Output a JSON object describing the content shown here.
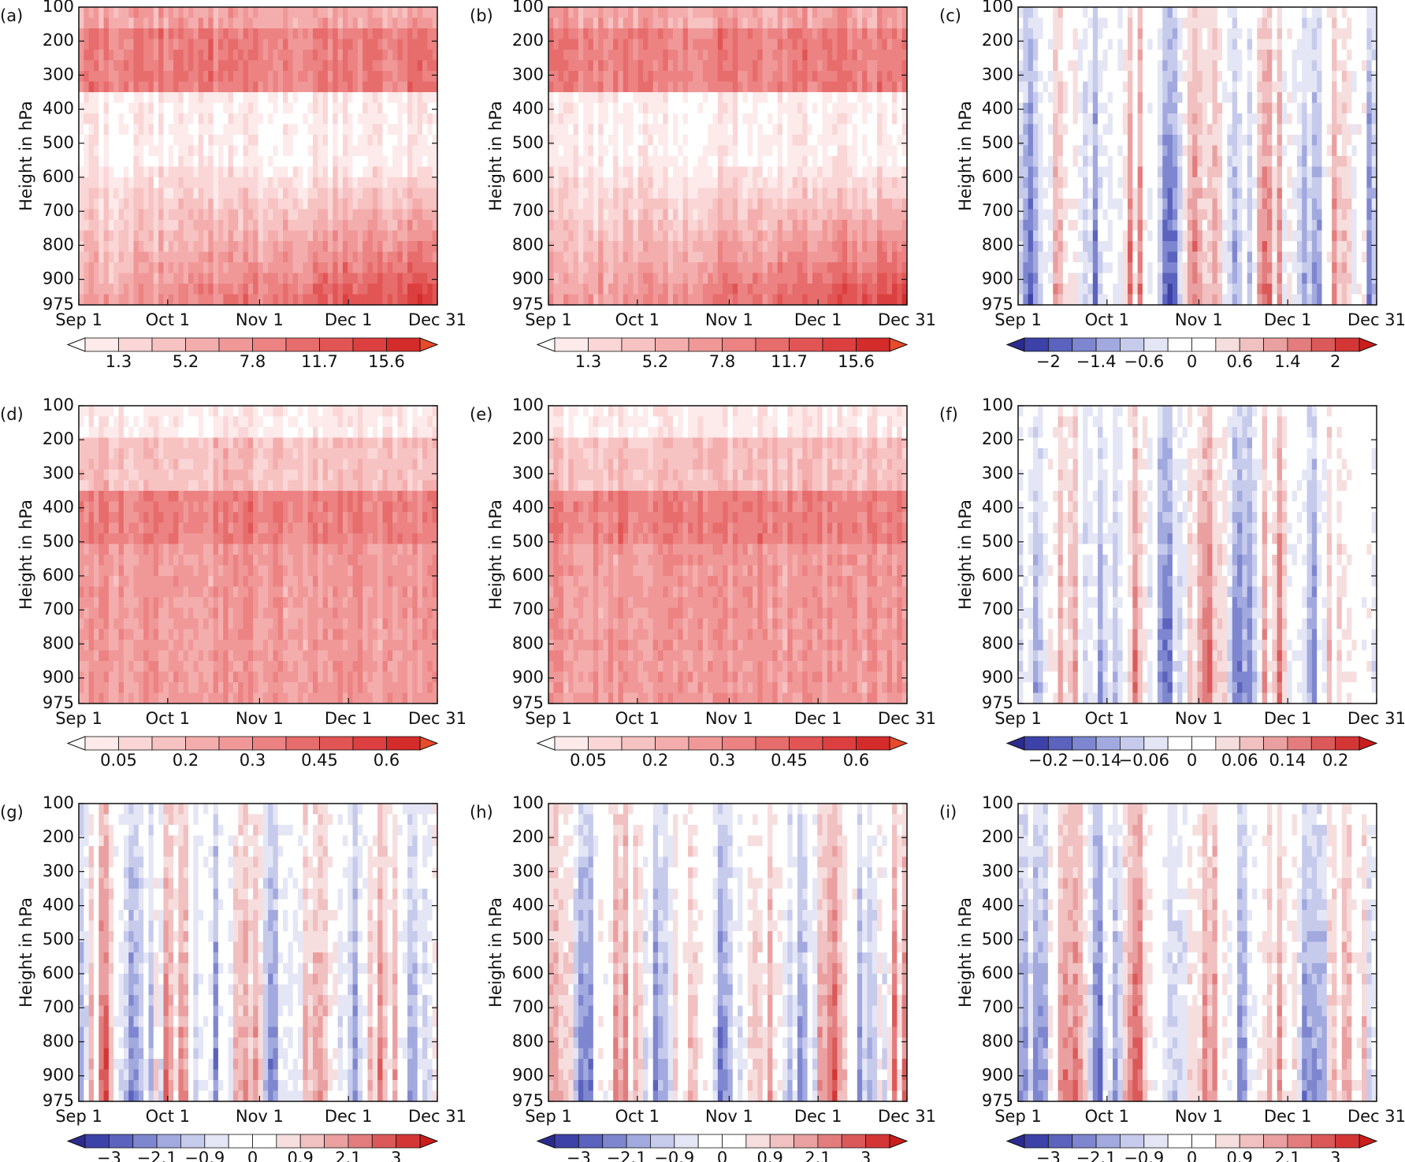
{
  "chart_data": [
    {
      "type": "contour",
      "panel_label": "(a)",
      "y_label": "Height in hPa",
      "ylim": [
        100,
        975
      ],
      "yticks": [
        100,
        200,
        300,
        400,
        500,
        600,
        700,
        800,
        900,
        975
      ],
      "xticks": [
        "Sep 1",
        "Oct 1",
        "Nov 1",
        "Dec 1",
        "Dec 31"
      ],
      "colors": [
        "#ffffff",
        "#fdeaea",
        "#fad6d6",
        "#f7c2c2",
        "#f4adad",
        "#f09898",
        "#ec8282",
        "#e76c6c",
        "#e25555",
        "#dc3f3f",
        "#d42b2b",
        "#e84a2a"
      ],
      "colorbar_ticks": [
        1.3,
        5.2,
        7.8,
        11.7,
        15.6
      ]
    },
    {
      "type": "contour",
      "panel_label": "(b)",
      "y_label": "Height in hPa",
      "ylim": [
        100,
        975
      ],
      "yticks": [
        100,
        200,
        300,
        400,
        500,
        600,
        700,
        800,
        900,
        975
      ],
      "xticks": [
        "Sep 1",
        "Oct 1",
        "Nov 1",
        "Dec 1",
        "Dec 31"
      ],
      "colors": [
        "#ffffff",
        "#fdeaea",
        "#fad6d6",
        "#f7c2c2",
        "#f4adad",
        "#f09898",
        "#ec8282",
        "#e76c6c",
        "#e25555",
        "#dc3f3f",
        "#d42b2b",
        "#e84a2a"
      ],
      "colorbar_ticks": [
        1.3,
        5.2,
        7.8,
        11.7,
        15.6
      ]
    },
    {
      "type": "contour",
      "panel_label": "(c)",
      "y_label": "Height in hPa",
      "ylim": [
        100,
        975
      ],
      "yticks": [
        100,
        200,
        300,
        400,
        500,
        600,
        700,
        800,
        900,
        975
      ],
      "xticks": [
        "Sep 1",
        "Oct 1",
        "Nov 1",
        "Dec 1",
        "Dec 31"
      ],
      "colors": [
        "#2b2b8e",
        "#3d42a8",
        "#5b63be",
        "#7e86cf",
        "#a2a9de",
        "#c6cbec",
        "#e4e6f5",
        "#ffffff",
        "#ffffff",
        "#f7dede",
        "#f1c0c0",
        "#eaa0a0",
        "#e37d7d",
        "#dc5959",
        "#d43636",
        "#cc1d1d"
      ],
      "colorbar_ticks": [
        {
          "value": -2,
          "label": "−2"
        },
        {
          "value": -1.4,
          "label": "−1.4"
        },
        {
          "value": -0.6,
          "label": "−0.6"
        },
        0,
        0.6,
        1.4,
        2
      ]
    },
    {
      "type": "contour",
      "panel_label": "(d)",
      "y_label": "Height in hPa",
      "ylim": [
        100,
        975
      ],
      "yticks": [
        100,
        200,
        300,
        400,
        500,
        600,
        700,
        800,
        900,
        975
      ],
      "xticks": [
        "Sep 1",
        "Oct 1",
        "Nov 1",
        "Dec 1",
        "Dec 31"
      ],
      "colors": [
        "#ffffff",
        "#fdeaea",
        "#fad6d6",
        "#f7c2c2",
        "#f4adad",
        "#f09898",
        "#ec8282",
        "#e76c6c",
        "#e25555",
        "#dc3f3f",
        "#d42b2b",
        "#e84a2a"
      ],
      "colorbar_ticks": [
        0.05,
        0.2,
        0.3,
        0.45,
        0.6
      ]
    },
    {
      "type": "contour",
      "panel_label": "(e)",
      "y_label": "Height in hPa",
      "ylim": [
        100,
        975
      ],
      "yticks": [
        100,
        200,
        300,
        400,
        500,
        600,
        700,
        800,
        900,
        975
      ],
      "xticks": [
        "Sep 1",
        "Oct 1",
        "Nov 1",
        "Dec 1",
        "Dec 31"
      ],
      "colors": [
        "#ffffff",
        "#fdeaea",
        "#fad6d6",
        "#f7c2c2",
        "#f4adad",
        "#f09898",
        "#ec8282",
        "#e76c6c",
        "#e25555",
        "#dc3f3f",
        "#d42b2b",
        "#e84a2a"
      ],
      "colorbar_ticks": [
        0.05,
        0.2,
        0.3,
        0.45,
        0.6
      ]
    },
    {
      "type": "contour",
      "panel_label": "(f)",
      "y_label": "Height in hPa",
      "ylim": [
        100,
        975
      ],
      "yticks": [
        100,
        200,
        300,
        400,
        500,
        600,
        700,
        800,
        900,
        975
      ],
      "xticks": [
        "Sep 1",
        "Oct 1",
        "Nov 1",
        "Dec 1",
        "Dec 31"
      ],
      "colors": [
        "#2b2b8e",
        "#3d42a8",
        "#5b63be",
        "#7e86cf",
        "#a2a9de",
        "#c6cbec",
        "#e4e6f5",
        "#ffffff",
        "#ffffff",
        "#f7dede",
        "#f1c0c0",
        "#eaa0a0",
        "#e37d7d",
        "#dc5959",
        "#d43636",
        "#cc1d1d"
      ],
      "colorbar_ticks": [
        {
          "value": -0.2,
          "label": "−0.2"
        },
        {
          "value": -0.14,
          "label": "−0.14"
        },
        {
          "value": -0.06,
          "label": "−0.06"
        },
        0,
        0.06,
        0.14,
        0.2
      ]
    },
    {
      "type": "contour",
      "panel_label": "(g)",
      "y_label": "Height in hPa",
      "ylim": [
        100,
        975
      ],
      "yticks": [
        100,
        200,
        300,
        400,
        500,
        600,
        700,
        800,
        900,
        975
      ],
      "xticks": [
        "Sep 1",
        "Oct 1",
        "Nov 1",
        "Dec 1",
        "Dec 31"
      ],
      "colors": [
        "#2b2b8e",
        "#3d42a8",
        "#5b63be",
        "#7e86cf",
        "#a2a9de",
        "#c6cbec",
        "#e4e6f5",
        "#ffffff",
        "#ffffff",
        "#f7dede",
        "#f1c0c0",
        "#eaa0a0",
        "#e37d7d",
        "#dc5959",
        "#d43636",
        "#cc1d1d"
      ],
      "colorbar_ticks": [
        {
          "value": -3,
          "label": "−3"
        },
        {
          "value": -2.1,
          "label": "−2.1"
        },
        {
          "value": -0.9,
          "label": "−0.9"
        },
        0,
        0.9,
        2.1,
        3
      ]
    },
    {
      "type": "contour",
      "panel_label": "(h)",
      "y_label": "Height in hPa",
      "ylim": [
        100,
        975
      ],
      "yticks": [
        100,
        200,
        300,
        400,
        500,
        600,
        700,
        800,
        900,
        975
      ],
      "xticks": [
        "Sep 1",
        "Oct 1",
        "Nov 1",
        "Dec 1",
        "Dec 31"
      ],
      "colors": [
        "#2b2b8e",
        "#3d42a8",
        "#5b63be",
        "#7e86cf",
        "#a2a9de",
        "#c6cbec",
        "#e4e6f5",
        "#ffffff",
        "#ffffff",
        "#f7dede",
        "#f1c0c0",
        "#eaa0a0",
        "#e37d7d",
        "#dc5959",
        "#d43636",
        "#cc1d1d"
      ],
      "colorbar_ticks": [
        {
          "value": -3,
          "label": "−3"
        },
        {
          "value": -2.1,
          "label": "−2.1"
        },
        {
          "value": -0.9,
          "label": "−0.9"
        },
        0,
        0.9,
        2.1,
        3
      ]
    },
    {
      "type": "contour",
      "panel_label": "(i)",
      "y_label": "Height in hPa",
      "ylim": [
        100,
        975
      ],
      "yticks": [
        100,
        200,
        300,
        400,
        500,
        600,
        700,
        800,
        900,
        975
      ],
      "xticks": [
        "Sep 1",
        "Oct 1",
        "Nov 1",
        "Dec 1",
        "Dec 31"
      ],
      "colors": [
        "#2b2b8e",
        "#3d42a8",
        "#5b63be",
        "#7e86cf",
        "#a2a9de",
        "#c6cbec",
        "#e4e6f5",
        "#ffffff",
        "#ffffff",
        "#f7dede",
        "#f1c0c0",
        "#eaa0a0",
        "#e37d7d",
        "#dc5959",
        "#d43636",
        "#cc1d1d"
      ],
      "colorbar_ticks": [
        {
          "value": -3,
          "label": "−3"
        },
        {
          "value": -2.1,
          "label": "−2.1"
        },
        {
          "value": -0.9,
          "label": "−0.9"
        },
        0,
        0.9,
        2.1,
        3
      ]
    }
  ]
}
